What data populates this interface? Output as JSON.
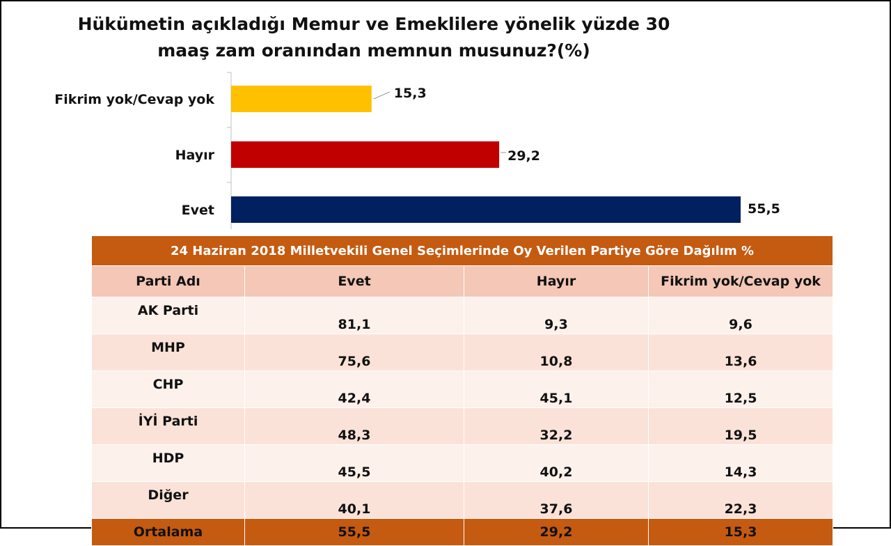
{
  "chart_data": {
    "type": "bar",
    "orientation": "horizontal",
    "title": "Hükümetin açıkladığı Memur ve Emeklilere yönelik yüzde 30 maaş zam oranından memnun musunuz?(%)",
    "title_lines": [
      "Hükümetin açıkladığı Memur ve Emeklilere yönelik yüzde 30",
      "maaş zam oranından memnun musunuz?(%)"
    ],
    "categories": [
      "Fikrim yok/Cevap yok",
      "Hayır",
      "Evet"
    ],
    "values": [
      15.3,
      29.2,
      55.5
    ],
    "value_labels": [
      "15,3",
      "29,2",
      "55,5"
    ],
    "colors": [
      "#ffc000",
      "#c00000",
      "#002060"
    ],
    "xlim": [
      0,
      55.5
    ],
    "grid": false,
    "legend": "none"
  },
  "table": {
    "caption": "24 Haziran 2018 Milletvekili Genel Seçimlerinde Oy Verilen Partiye Göre Dağılım %",
    "columns": [
      "Parti Adı",
      "Evet",
      "Hayır",
      "Fikrim yok/Cevap yok"
    ],
    "rows": [
      [
        "AK Parti",
        "81,1",
        "9,3",
        "9,6"
      ],
      [
        "MHP",
        "75,6",
        "10,8",
        "13,6"
      ],
      [
        "CHP",
        "42,4",
        "45,1",
        "12,5"
      ],
      [
        "İYİ Parti",
        "48,3",
        "32,2",
        "19,5"
      ],
      [
        "HDP",
        "45,5",
        "40,2",
        "14,3"
      ],
      [
        "Diğer",
        "40,1",
        "37,6",
        "22,3"
      ]
    ],
    "footer": [
      "Ortalama",
      "55,5",
      "29,2",
      "15,3"
    ],
    "colors": {
      "header_band": "#c55a11",
      "row_dark": "#fbe2d8",
      "row_light": "#fdf1ec",
      "column_header": "#f4c7b6"
    }
  }
}
